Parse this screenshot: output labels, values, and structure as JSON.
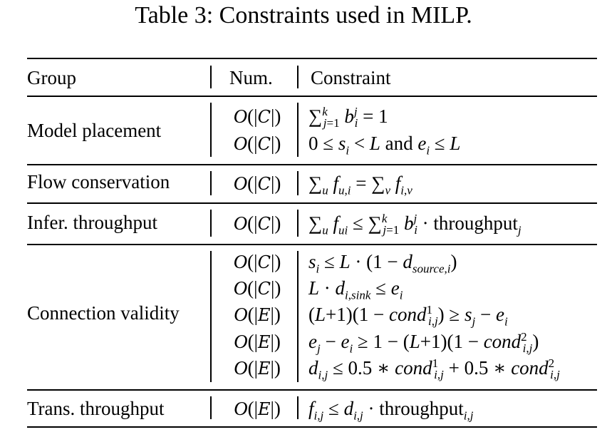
{
  "caption": "Table 3: Constraints used in MILP.",
  "headers": {
    "group": "Group",
    "num": "Num.",
    "constraint": "Constraint"
  },
  "groups": [
    {
      "name": "Model placement",
      "rows": [
        {
          "num": "O(|C|)",
          "constraint": "∑_{j=1}^{k} b_i^j = 1"
        },
        {
          "num": "O(|C|)",
          "constraint": "0 ≤ s_i < L and e_i ≤ L"
        }
      ]
    },
    {
      "name": "Flow conservation",
      "rows": [
        {
          "num": "O(|C|)",
          "constraint": "∑_u f_{u,i} = ∑_v f_{i,v}"
        }
      ]
    },
    {
      "name": "Infer. throughput",
      "rows": [
        {
          "num": "O(|C|)",
          "constraint": "∑_u f_{ui} ≤ ∑_{j=1}^{k} b_i^j · throughput_j"
        }
      ]
    },
    {
      "name": "Connection validity",
      "rows": [
        {
          "num": "O(|C|)",
          "constraint": "s_i ≤ L · (1 − d_{source,i})"
        },
        {
          "num": "O(|C|)",
          "constraint": "L · d_{i,sink} ≤ e_i"
        },
        {
          "num": "O(|E|)",
          "constraint": "(L+1)(1 − cond^1_{i,j}) ≥ s_j − e_i"
        },
        {
          "num": "O(|E|)",
          "constraint": "e_j − e_i ≥ 1 − (L+1)(1 − cond^2_{i,j})"
        },
        {
          "num": "O(|E|)",
          "constraint": "d_{i,j} ≤ 0.5 ∗ cond^1_{i,j} + 0.5 ∗ cond^2_{i,j}"
        }
      ]
    },
    {
      "name": "Trans. throughput",
      "rows": [
        {
          "num": "O(|E|)",
          "constraint": "f_{i,j} ≤ d_{i,j} · throughput_{i,j}"
        }
      ]
    }
  ]
}
